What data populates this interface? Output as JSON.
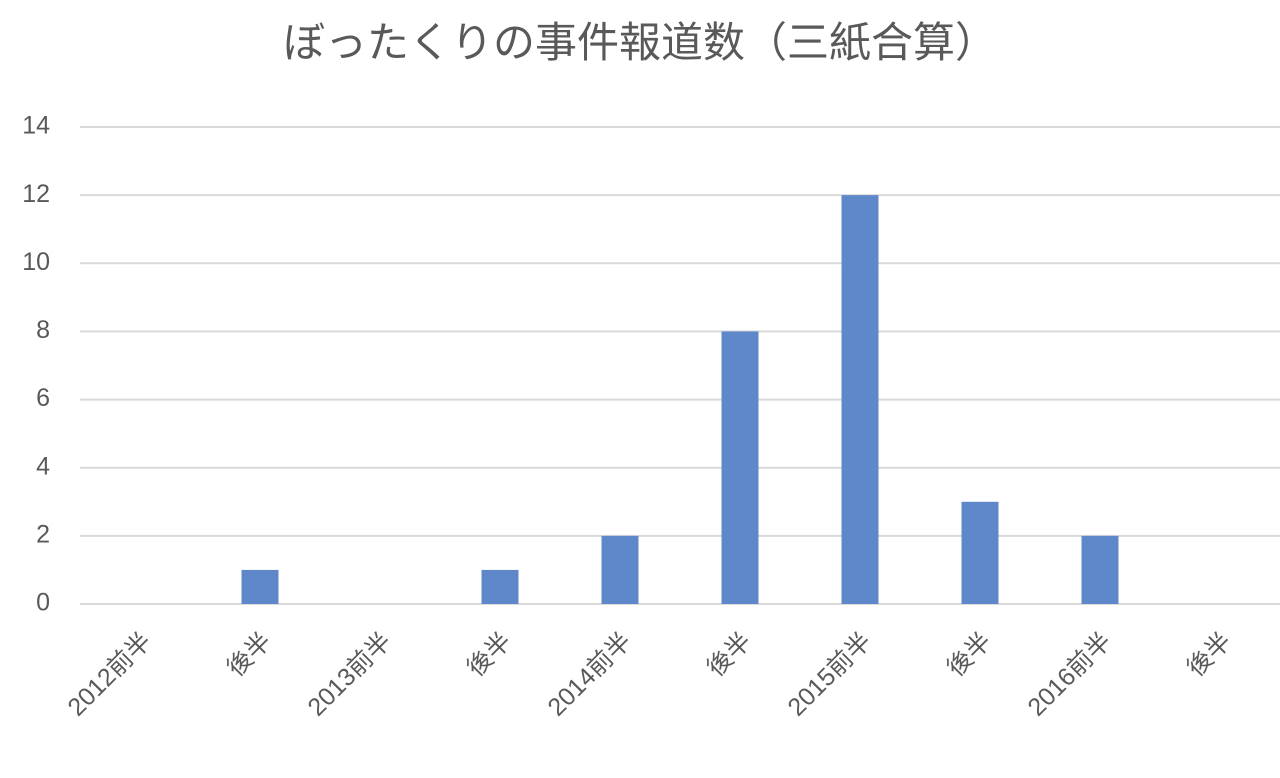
{
  "chart_data": {
    "type": "bar",
    "title": "ぼったくりの事件報道数（三紙合算）",
    "categories": [
      "2012前半",
      "後半",
      "2013前半",
      "後半",
      "2014前半",
      "後半",
      "2015前半",
      "後半",
      "2016前半",
      "後半"
    ],
    "values": [
      0,
      1,
      0,
      1,
      2,
      8,
      12,
      3,
      2,
      0
    ],
    "color": "#5f88ca",
    "ylim": [
      0,
      14
    ],
    "yticks": [
      0,
      2,
      4,
      6,
      8,
      10,
      12,
      14
    ],
    "grid": true
  }
}
